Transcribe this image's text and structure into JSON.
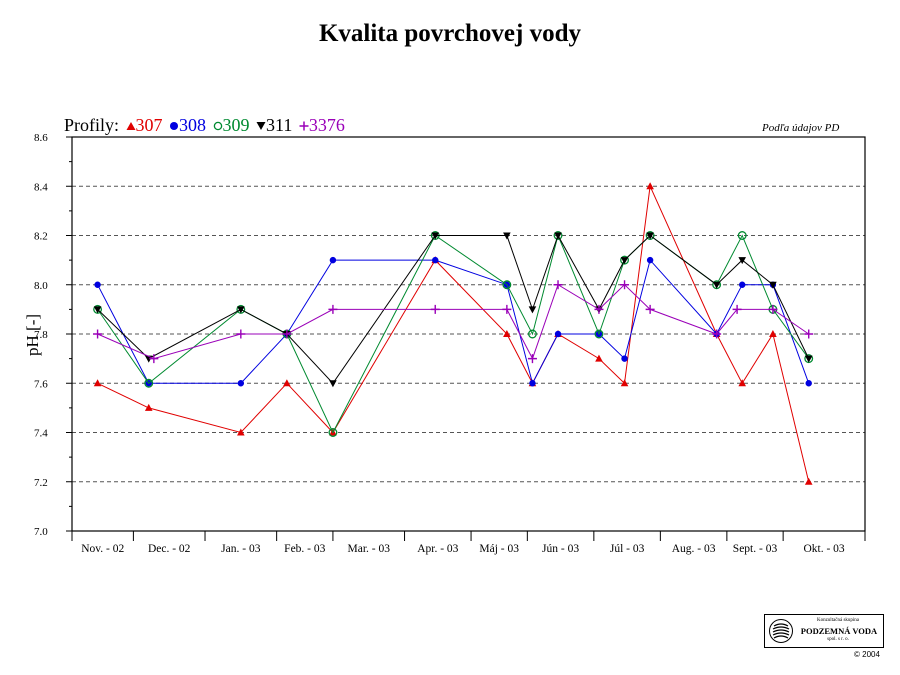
{
  "chart_data": {
    "type": "line",
    "title": "Kvalita povrchovej vody",
    "ylabel": "pH [-]",
    "xlabel": "",
    "note": "Podľa údajov PD",
    "legend_title": "Profily:",
    "ylim": [
      7.0,
      8.6
    ],
    "yticks": [
      "7.0",
      "7.2",
      "7.4",
      "7.6",
      "7.8",
      "8.0",
      "8.2",
      "8.4",
      "8.6"
    ],
    "grid": "horizontal dashed",
    "months": [
      "Nov. - 02",
      "Dec. - 02",
      "Jan. - 03",
      "Feb. - 03",
      "Mar. - 03",
      "Apr. - 03",
      "Máj - 03",
      "Jún - 03",
      "Júl - 03",
      "Aug. - 03",
      "Sept. - 03",
      "Okt. - 03"
    ],
    "series": [
      {
        "name": "307",
        "color": "#e00000",
        "marker": "triangle-up",
        "x": [
          0.5,
          1.5,
          3.3,
          4.2,
          5.1,
          7.1,
          8.5,
          9.0,
          9.5,
          10.3,
          10.8,
          11.3,
          12.6,
          13.1,
          13.7,
          14.4
        ],
        "y": [
          7.6,
          7.5,
          7.4,
          7.6,
          7.4,
          8.1,
          7.8,
          7.6,
          7.8,
          7.7,
          7.6,
          8.4,
          7.8,
          7.6,
          7.8,
          7.2
        ]
      },
      {
        "name": "308",
        "color": "#0000e0",
        "marker": "circle",
        "x": [
          0.5,
          1.5,
          3.3,
          4.2,
          5.1,
          7.1,
          8.5,
          9.0,
          9.5,
          10.3,
          10.8,
          11.3,
          12.6,
          13.1,
          13.7,
          14.4
        ],
        "y": [
          8.0,
          7.6,
          7.6,
          7.8,
          8.1,
          8.1,
          8.0,
          7.6,
          7.8,
          7.8,
          7.7,
          8.1,
          7.8,
          8.0,
          8.0,
          7.6
        ]
      },
      {
        "name": "309",
        "color": "#008a30",
        "marker": "circle-open",
        "x": [
          0.5,
          1.5,
          3.3,
          4.2,
          5.1,
          7.1,
          8.5,
          9.0,
          9.5,
          10.3,
          10.8,
          11.3,
          12.6,
          13.1,
          13.7,
          14.4
        ],
        "y": [
          7.9,
          7.6,
          7.9,
          7.8,
          7.4,
          8.2,
          8.0,
          7.8,
          8.2,
          7.8,
          8.1,
          8.2,
          8.0,
          8.2,
          7.9,
          7.7
        ]
      },
      {
        "name": "311",
        "color": "#000000",
        "marker": "triangle-down",
        "x": [
          0.5,
          1.5,
          3.3,
          4.2,
          5.1,
          7.1,
          8.5,
          9.0,
          9.5,
          10.3,
          10.8,
          11.3,
          12.6,
          13.1,
          13.7,
          14.4
        ],
        "y": [
          7.9,
          7.7,
          7.9,
          7.8,
          7.6,
          8.2,
          8.2,
          7.9,
          8.2,
          7.9,
          8.1,
          8.2,
          8.0,
          8.1,
          8.0,
          7.7
        ]
      },
      {
        "name": "3376",
        "color": "#9a00b8",
        "marker": "plus",
        "x": [
          0.5,
          1.6,
          3.3,
          4.2,
          5.1,
          7.1,
          8.5,
          9.0,
          9.5,
          10.3,
          10.8,
          11.3,
          12.6,
          13.0,
          13.7,
          14.4
        ],
        "y": [
          7.8,
          7.7,
          7.8,
          7.8,
          7.9,
          7.9,
          7.9,
          7.7,
          8.0,
          7.9,
          8.0,
          7.9,
          7.8,
          7.9,
          7.9,
          7.8
        ]
      }
    ]
  },
  "logo": {
    "line1": "Konzultačná skupina",
    "line2": "PODZEMNÁ VODA",
    "line3": "spol. s r. o.",
    "icon": "logo-spiral-mark"
  },
  "copyright": "© 2004"
}
